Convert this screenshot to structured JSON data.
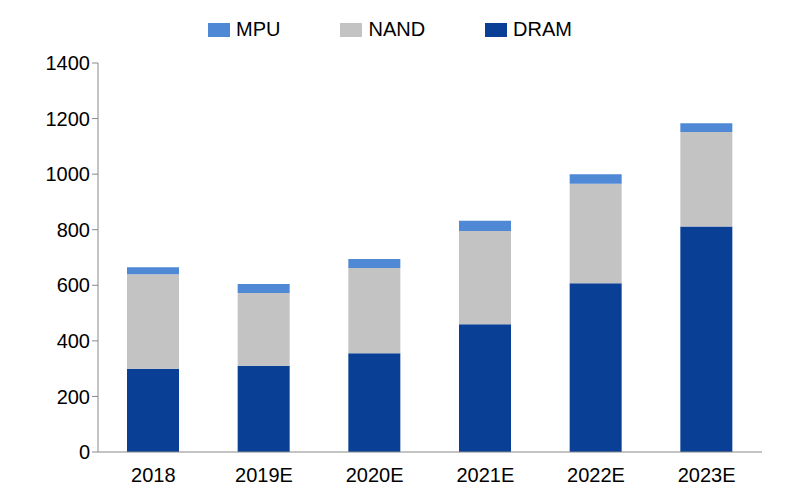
{
  "chart_data": {
    "type": "bar",
    "stacked": true,
    "grid": false,
    "legend": "top",
    "categories": [
      "2018",
      "2019E",
      "2020E",
      "2021E",
      "2022E",
      "2023E"
    ],
    "series": [
      {
        "name": "DRAM",
        "color": "#0a3f96",
        "values": [
          300,
          310,
          355,
          460,
          607,
          812
        ]
      },
      {
        "name": "NAND",
        "color": "#c3c3c3",
        "values": [
          340,
          262,
          307,
          335,
          358,
          340
        ]
      },
      {
        "name": "MPU",
        "color": "#4f88d4",
        "values": [
          25,
          33,
          33,
          37,
          35,
          31
        ]
      }
    ],
    "ylim": [
      0,
      1400
    ],
    "yticks": [
      0,
      200,
      400,
      600,
      800,
      1000,
      1200,
      1400
    ]
  }
}
